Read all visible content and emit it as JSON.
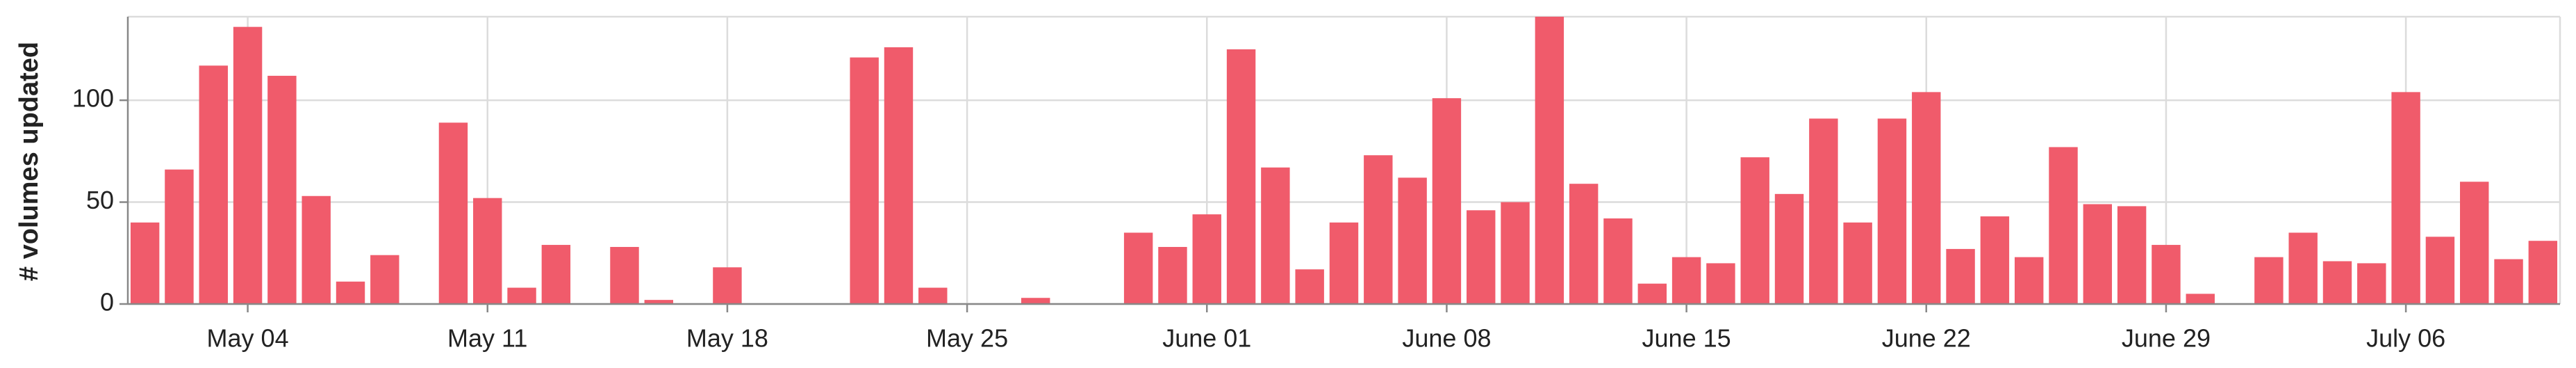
{
  "chart_data": {
    "type": "bar",
    "y_label": "# volumes updated",
    "categories": [
      null,
      null,
      null,
      "May 04",
      null,
      null,
      null,
      null,
      null,
      null,
      "May 11",
      null,
      null,
      null,
      null,
      null,
      null,
      "May 18",
      null,
      null,
      null,
      null,
      null,
      null,
      "May 25",
      null,
      null,
      null,
      null,
      null,
      null,
      "June 01",
      null,
      null,
      null,
      null,
      null,
      null,
      "June 08",
      null,
      null,
      null,
      null,
      null,
      null,
      "June 15",
      null,
      null,
      null,
      null,
      null,
      null,
      "June 22",
      null,
      null,
      null,
      null,
      null,
      null,
      "June 29",
      null,
      null,
      null,
      null,
      null,
      null,
      "July 06",
      null,
      null,
      null,
      null
    ],
    "values": [
      40,
      66,
      117,
      136,
      112,
      53,
      11,
      24,
      0,
      89,
      52,
      8,
      29,
      0,
      28,
      2,
      0,
      18,
      0,
      0,
      0,
      121,
      126,
      8,
      0,
      0,
      3,
      0,
      0,
      35,
      28,
      44,
      125,
      67,
      17,
      40,
      73,
      62,
      101,
      46,
      50,
      141,
      59,
      42,
      10,
      23,
      20,
      72,
      54,
      91,
      40,
      91,
      104,
      27,
      43,
      23,
      77,
      49,
      48,
      29,
      5,
      0,
      23,
      35,
      21,
      20,
      104,
      33,
      60,
      22,
      31
    ],
    "color": "#f05b6b",
    "ylim": [
      0,
      141
    ],
    "yticks": [
      0,
      50,
      100
    ],
    "grid": true
  }
}
